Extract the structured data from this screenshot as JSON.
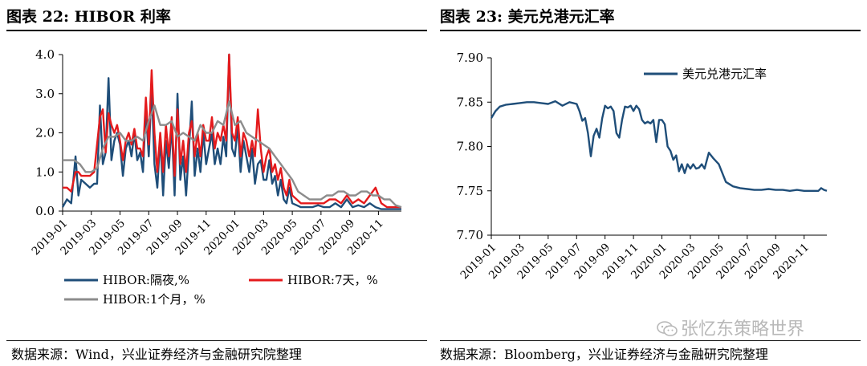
{
  "left_panel": {
    "title": "图表 22:  HIBOR 利率",
    "source": "数据来源：Wind，兴业证券经济与金融研究院整理"
  },
  "right_panel": {
    "title": "图表 23:  美元兑港元汇率",
    "source": "数据来源：Bloomberg，兴业证券经济与金融研究院整理"
  },
  "watermark": {
    "text": "张忆东策略世界",
    "icon": "wechat-icon"
  },
  "chart_data": [
    {
      "type": "line",
      "title": "HIBOR 利率",
      "x_tick_labels": [
        "2019-01",
        "2019-03",
        "2019-05",
        "2019-07",
        "2019-09",
        "2019-11",
        "2020-01",
        "2020-03",
        "2020-05",
        "2020-07",
        "2020-09",
        "2020-11"
      ],
      "y_tick_labels": [
        "0.0",
        "1.0",
        "2.0",
        "3.0",
        "4.0"
      ],
      "ylim": [
        0,
        4
      ],
      "xlim": [
        0,
        23.6
      ],
      "grid": false,
      "legend_position": "bottom",
      "series": [
        {
          "name": "HIBOR:隔夜,%",
          "color": "#1f4e79",
          "x": [
            0,
            0.3,
            0.6,
            0.9,
            1.1,
            1.3,
            1.6,
            1.9,
            2.2,
            2.4,
            2.6,
            2.8,
            3.0,
            3.2,
            3.4,
            3.6,
            3.8,
            4.0,
            4.2,
            4.4,
            4.6,
            4.8,
            5.0,
            5.2,
            5.4,
            5.6,
            5.8,
            6.0,
            6.2,
            6.4,
            6.6,
            6.8,
            7.0,
            7.2,
            7.4,
            7.6,
            7.8,
            8.0,
            8.2,
            8.4,
            8.6,
            8.8,
            9.0,
            9.2,
            9.4,
            9.6,
            9.8,
            10.0,
            10.2,
            10.4,
            10.6,
            10.8,
            11.0,
            11.2,
            11.4,
            11.6,
            11.8,
            12.0,
            12.2,
            12.4,
            12.6,
            12.8,
            13.0,
            13.2,
            13.4,
            13.6,
            13.8,
            14.0,
            14.2,
            14.4,
            14.6,
            14.8,
            15.0,
            15.2,
            15.4,
            15.6,
            15.8,
            16.0,
            16.3,
            16.6,
            17.0,
            17.4,
            17.8,
            18.2,
            18.6,
            19.0,
            19.4,
            19.8,
            20.2,
            20.6,
            21.0,
            21.4,
            21.8,
            22.2,
            22.6,
            23.0,
            23.4,
            23.6
          ],
          "values": [
            0.1,
            0.3,
            0.2,
            1.4,
            0.4,
            0.8,
            0.7,
            0.6,
            0.7,
            0.7,
            2.7,
            1.2,
            1.5,
            3.4,
            1.3,
            1.8,
            2.0,
            1.7,
            0.9,
            1.6,
            1.8,
            1.4,
            2.0,
            1.3,
            1.5,
            1.0,
            2.6,
            1.4,
            3.2,
            1.2,
            0.6,
            1.9,
            0.4,
            1.8,
            1.1,
            2.2,
            0.4,
            3.0,
            0.8,
            1.4,
            0.4,
            1.6,
            2.8,
            0.9,
            1.6,
            1.0,
            2.0,
            1.2,
            1.6,
            2.0,
            1.2,
            1.6,
            1.2,
            1.9,
            1.4,
            4.0,
            1.6,
            1.4,
            2.2,
            1.0,
            1.8,
            1.4,
            1.0,
            1.6,
            0.7,
            1.2,
            1.3,
            0.8,
            0.8,
            1.3,
            0.7,
            0.9,
            0.4,
            0.8,
            0.3,
            0.2,
            0.6,
            0.2,
            0.15,
            0.1,
            0.1,
            0.1,
            0.15,
            0.1,
            0.1,
            0.2,
            0.1,
            0.3,
            0.1,
            0.15,
            0.1,
            0.2,
            0.1,
            0.05,
            0.05,
            0.05,
            0.05,
            0.05
          ]
        },
        {
          "name": "HIBOR:7天，%",
          "color": "#e41a1c",
          "x": [
            0,
            0.3,
            0.6,
            0.9,
            1.1,
            1.3,
            1.6,
            1.9,
            2.2,
            2.4,
            2.6,
            2.8,
            3.0,
            3.2,
            3.4,
            3.6,
            3.8,
            4.0,
            4.2,
            4.4,
            4.6,
            4.8,
            5.0,
            5.2,
            5.4,
            5.6,
            5.8,
            6.0,
            6.2,
            6.4,
            6.6,
            6.8,
            7.0,
            7.2,
            7.4,
            7.6,
            7.8,
            8.0,
            8.2,
            8.4,
            8.6,
            8.8,
            9.0,
            9.2,
            9.4,
            9.6,
            9.8,
            10.0,
            10.2,
            10.4,
            10.6,
            10.8,
            11.0,
            11.2,
            11.4,
            11.6,
            11.8,
            12.0,
            12.2,
            12.4,
            12.6,
            12.8,
            13.0,
            13.2,
            13.4,
            13.6,
            13.8,
            14.0,
            14.2,
            14.4,
            14.6,
            14.8,
            15.0,
            15.2,
            15.4,
            15.6,
            15.8,
            16.0,
            16.3,
            16.6,
            17.0,
            17.4,
            17.8,
            18.2,
            18.6,
            19.0,
            19.4,
            19.8,
            20.2,
            20.6,
            21.0,
            21.4,
            21.8,
            22.2,
            22.6,
            23.0,
            23.4,
            23.6
          ],
          "values": [
            0.6,
            0.6,
            0.5,
            1.0,
            1.0,
            0.9,
            0.9,
            0.9,
            1.0,
            1.7,
            2.4,
            2.6,
            1.5,
            2.5,
            2.2,
            2.0,
            2.2,
            1.8,
            1.3,
            1.8,
            2.0,
            1.7,
            2.1,
            1.6,
            1.6,
            1.4,
            2.9,
            1.7,
            3.6,
            2.0,
            1.0,
            2.0,
            1.0,
            2.2,
            1.4,
            2.4,
            0.9,
            2.6,
            1.2,
            1.8,
            1.0,
            2.0,
            2.3,
            1.4,
            2.0,
            1.4,
            2.2,
            1.8,
            1.8,
            2.4,
            1.6,
            2.0,
            1.8,
            2.2,
            1.8,
            4.0,
            2.0,
            1.8,
            2.4,
            1.4,
            2.0,
            1.8,
            1.4,
            1.8,
            1.4,
            2.6,
            1.6,
            1.0,
            1.4,
            1.6,
            1.0,
            1.2,
            0.8,
            1.1,
            0.6,
            0.4,
            0.8,
            0.4,
            0.3,
            0.2,
            0.2,
            0.2,
            0.2,
            0.2,
            0.3,
            0.3,
            0.2,
            0.4,
            0.2,
            0.3,
            0.2,
            0.4,
            0.6,
            0.2,
            0.1,
            0.1,
            0.1,
            0.1
          ]
        },
        {
          "name": "HIBOR:1个月，%",
          "color": "#8c8c8c",
          "x": [
            0,
            0.4,
            0.8,
            1.2,
            1.6,
            2.0,
            2.4,
            2.8,
            3.2,
            3.6,
            4.0,
            4.4,
            4.8,
            5.2,
            5.6,
            6.0,
            6.4,
            6.8,
            7.2,
            7.6,
            8.0,
            8.4,
            8.8,
            9.2,
            9.6,
            10.0,
            10.4,
            10.8,
            11.2,
            11.6,
            12.0,
            12.4,
            12.8,
            13.2,
            13.6,
            14.0,
            14.4,
            14.8,
            15.2,
            15.6,
            16.0,
            16.4,
            16.8,
            17.2,
            17.6,
            18.0,
            18.4,
            18.8,
            19.2,
            19.6,
            20.0,
            20.4,
            20.8,
            21.2,
            21.6,
            22.0,
            22.4,
            22.8,
            23.2,
            23.6
          ],
          "values": [
            1.3,
            1.3,
            1.3,
            1.2,
            1.0,
            1.0,
            1.1,
            1.6,
            1.9,
            1.9,
            2.0,
            1.8,
            1.8,
            1.9,
            1.8,
            2.3,
            2.7,
            2.2,
            2.2,
            2.3,
            1.9,
            2.0,
            1.9,
            1.8,
            2.2,
            2.0,
            2.0,
            2.3,
            2.2,
            2.8,
            2.2,
            2.3,
            2.0,
            1.9,
            1.8,
            1.7,
            1.6,
            1.4,
            1.2,
            1.0,
            0.8,
            0.5,
            0.4,
            0.3,
            0.3,
            0.3,
            0.4,
            0.4,
            0.5,
            0.5,
            0.4,
            0.4,
            0.5,
            0.5,
            0.4,
            0.4,
            0.3,
            0.3,
            0.15,
            0.1
          ]
        }
      ]
    },
    {
      "type": "line",
      "title": "美元兑港元汇率",
      "x_tick_labels": [
        "2019-01",
        "2019-03",
        "2019-05",
        "2019-07",
        "2019-09",
        "2019-11",
        "2020-01",
        "2020-03",
        "2020-05",
        "2020-07",
        "2020-09",
        "2020-11"
      ],
      "y_tick_labels": [
        "7.70",
        "7.75",
        "7.80",
        "7.85",
        "7.90"
      ],
      "ylim": [
        7.7,
        7.9
      ],
      "xlim": [
        0,
        23.6
      ],
      "grid": false,
      "legend_position": "top-right",
      "series": [
        {
          "name": "美元兑港元汇率",
          "color": "#1f4e79",
          "x": [
            0,
            0.3,
            0.6,
            1.0,
            1.5,
            2.0,
            2.5,
            3.0,
            3.5,
            4.0,
            4.5,
            5.0,
            5.5,
            6.0,
            6.2,
            6.4,
            6.6,
            6.8,
            7.0,
            7.2,
            7.4,
            7.6,
            7.8,
            8.0,
            8.2,
            8.4,
            8.6,
            8.8,
            9.0,
            9.2,
            9.4,
            9.6,
            9.8,
            10.0,
            10.2,
            10.4,
            10.6,
            10.8,
            11.0,
            11.2,
            11.4,
            11.6,
            11.8,
            12.0,
            12.2,
            12.4,
            12.6,
            12.8,
            13.0,
            13.2,
            13.4,
            13.6,
            13.8,
            14.0,
            14.2,
            14.4,
            14.6,
            14.8,
            15.0,
            15.3,
            15.6,
            16.0,
            16.5,
            17.0,
            17.5,
            18.0,
            18.5,
            19.0,
            19.5,
            20.0,
            20.5,
            21.0,
            21.5,
            22.0,
            22.5,
            23.0,
            23.2,
            23.4,
            23.6
          ],
          "values": [
            7.832,
            7.84,
            7.845,
            7.847,
            7.848,
            7.849,
            7.85,
            7.85,
            7.849,
            7.848,
            7.851,
            7.846,
            7.85,
            7.848,
            7.84,
            7.829,
            7.832,
            7.815,
            7.789,
            7.812,
            7.82,
            7.81,
            7.832,
            7.846,
            7.843,
            7.845,
            7.84,
            7.815,
            7.81,
            7.83,
            7.845,
            7.844,
            7.846,
            7.84,
            7.846,
            7.842,
            7.83,
            7.826,
            7.828,
            7.826,
            7.83,
            7.805,
            7.83,
            7.83,
            7.825,
            7.8,
            7.795,
            7.785,
            7.79,
            7.772,
            7.78,
            7.77,
            7.78,
            7.775,
            7.78,
            7.775,
            7.776,
            7.78,
            7.775,
            7.793,
            7.787,
            7.78,
            7.76,
            7.755,
            7.753,
            7.752,
            7.751,
            7.751,
            7.752,
            7.751,
            7.751,
            7.75,
            7.751,
            7.75,
            7.75,
            7.75,
            7.753,
            7.751,
            7.75
          ]
        }
      ]
    }
  ]
}
